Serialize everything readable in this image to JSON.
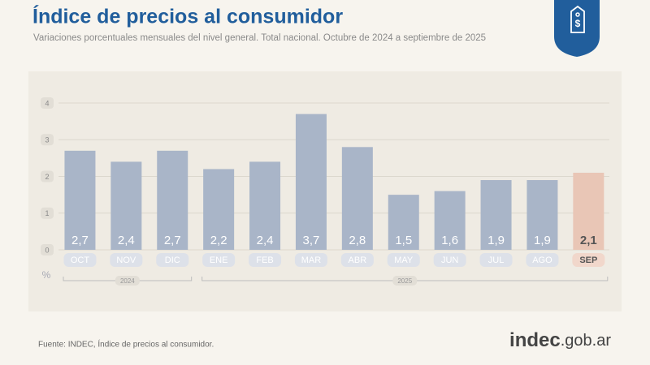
{
  "chart_data": {
    "type": "bar",
    "title": "Índice de precios al consumidor",
    "subtitle": "Variaciones porcentuales mensuales del nivel general. Total nacional. Octubre de 2024 a septiembre de 2025",
    "categories": [
      "OCT",
      "NOV",
      "DIC",
      "ENE",
      "FEB",
      "MAR",
      "ABR",
      "MAY",
      "JUN",
      "JUL",
      "AGO",
      "SEP"
    ],
    "years": [
      "2024",
      "2024",
      "2024",
      "2025",
      "2025",
      "2025",
      "2025",
      "2025",
      "2025",
      "2025",
      "2025",
      "2025"
    ],
    "values": [
      2.7,
      2.4,
      2.7,
      2.2,
      2.4,
      3.7,
      2.8,
      1.5,
      1.6,
      1.9,
      1.9,
      2.1
    ],
    "value_labels": [
      "2,7",
      "2,4",
      "2,7",
      "2,2",
      "2,4",
      "3,7",
      "2,8",
      "1,5",
      "1,6",
      "1,9",
      "1,9",
      "2,1"
    ],
    "colors": [
      "#a9b5c8",
      "#a9b5c8",
      "#a9b5c8",
      "#a9b5c8",
      "#a9b5c8",
      "#a9b5c8",
      "#a9b5c8",
      "#a9b5c8",
      "#a9b5c8",
      "#a9b5c8",
      "#a9b5c8",
      "#e9c6b6"
    ],
    "unit": "%",
    "ylim": [
      0,
      4
    ],
    "yticks": [
      0,
      1,
      2,
      3,
      4
    ],
    "grid": true,
    "source": "Fuente: INDEC, Índice de precios al consumidor.",
    "logo": {
      "name": "indec",
      "domain": ".gob.ar"
    }
  }
}
